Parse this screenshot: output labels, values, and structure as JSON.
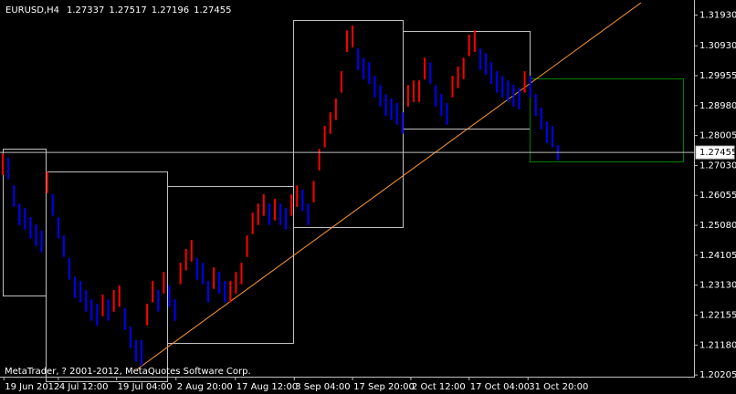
{
  "chart_data": {
    "type": "hl_bars",
    "title": "EURUSD,H4",
    "ohlc_info": [
      1.27337,
      1.27517,
      1.27196,
      1.27455
    ],
    "last_price": 1.27455,
    "copyright": "MetaTrader, ? 2001-2012, MetaQuotes Software Corp.",
    "up_color": "#ff0000",
    "down_color": "#0000ff",
    "high": [
      1.2742,
      1.2728,
      1.2638,
      1.2579,
      1.2564,
      1.2535,
      1.2511,
      1.249,
      1.2683,
      1.2609,
      1.2535,
      1.2475,
      1.2401,
      1.2341,
      1.2327,
      1.2297,
      1.2267,
      1.2252,
      1.2282,
      1.2267,
      1.2297,
      1.2312,
      1.2238,
      1.2178,
      1.2134,
      1.2134,
      1.2252,
      1.2327,
      1.2297,
      1.2356,
      1.2312,
      1.2267,
      1.2386,
      1.2431,
      1.246,
      1.2401,
      1.2386,
      1.2327,
      1.2371,
      1.2356,
      1.2327,
      1.2327,
      1.2356,
      1.2386,
      1.2475,
      1.2549,
      1.2579,
      1.2609,
      1.2579,
      1.2594,
      1.2579,
      1.2564,
      1.2609,
      1.2638,
      1.2624,
      1.2579,
      1.2653,
      1.2757,
      1.2832,
      1.2876,
      1.2921,
      1.301,
      1.3143,
      1.3158,
      1.3084,
      1.3054,
      1.3039,
      1.2995,
      1.2965,
      1.2935,
      1.2921,
      1.2906,
      1.2876,
      1.2965,
      1.298,
      1.298,
      1.3054,
      1.3039,
      1.2965,
      1.2935,
      1.2906,
      1.2995,
      1.3025,
      1.3054,
      1.3129,
      1.3143,
      1.3084,
      1.3069,
      1.3039,
      1.301,
      1.2995,
      1.298,
      1.2965,
      1.2956,
      1.301,
      1.2995,
      1.2935,
      1.2891,
      1.2846,
      1.2832,
      1.277
    ],
    "low": [
      1.2672,
      1.2658,
      1.2568,
      1.2509,
      1.2494,
      1.2465,
      1.2441,
      1.242,
      1.2613,
      1.2539,
      1.2465,
      1.2405,
      1.2331,
      1.2271,
      1.2257,
      1.2227,
      1.2197,
      1.2182,
      1.2212,
      1.2197,
      1.2227,
      1.2242,
      1.2168,
      1.2108,
      1.2064,
      1.205,
      1.2182,
      1.2257,
      1.2227,
      1.2286,
      1.2242,
      1.2197,
      1.2316,
      1.2361,
      1.239,
      1.2331,
      1.2316,
      1.2257,
      1.2301,
      1.2286,
      1.2257,
      1.2257,
      1.2286,
      1.2316,
      1.2405,
      1.2479,
      1.2509,
      1.2539,
      1.2509,
      1.2524,
      1.2509,
      1.2494,
      1.2539,
      1.2568,
      1.2554,
      1.2509,
      1.2583,
      1.2687,
      1.2762,
      1.2806,
      1.2851,
      1.294,
      1.3073,
      1.3088,
      1.3014,
      1.2984,
      1.2969,
      1.2925,
      1.2895,
      1.2865,
      1.2851,
      1.2836,
      1.2806,
      1.2895,
      1.291,
      1.291,
      1.2984,
      1.2969,
      1.2895,
      1.2865,
      1.2836,
      1.2925,
      1.2955,
      1.2984,
      1.3059,
      1.3073,
      1.3014,
      1.2999,
      1.2969,
      1.294,
      1.2925,
      1.291,
      1.2895,
      1.2886,
      1.294,
      1.2925,
      1.2865,
      1.2821,
      1.2776,
      1.2762,
      1.272
    ],
    "xlim": [
      -0.5,
      124.5
    ],
    "xticks": [
      {
        "value": 0.2,
        "label": "19 Jun 2012"
      },
      {
        "value": 10,
        "label": "4 Jul 12:00"
      },
      {
        "value": 20.5,
        "label": "19 Jul 04:00"
      },
      {
        "value": 31.2,
        "label": "2 Aug 20:00"
      },
      {
        "value": 41.9,
        "label": "17 Aug 12:00"
      },
      {
        "value": 52.5,
        "label": "3 Sep 04:00"
      },
      {
        "value": 63,
        "label": "17 Sep 20:00"
      },
      {
        "value": 73.5,
        "label": "2 Oct 12:00"
      },
      {
        "value": 84,
        "label": "17 Oct 04:00"
      },
      {
        "value": 94.6,
        "label": "31 Oct 20:00"
      }
    ],
    "ylim": [
      1.2015,
      1.3242
    ],
    "yticks": [
      1.20205,
      {
        "value": 1.2118,
        "label": "1.21180"
      },
      1.22155,
      {
        "value": 1.2313,
        "label": "1.23130"
      },
      1.24105,
      {
        "value": 1.2508,
        "label": "1.25080"
      },
      1.26055,
      {
        "value": 1.2703,
        "label": "1.27030"
      },
      1.28005,
      {
        "value": 1.2898,
        "label": "1.28980"
      },
      1.29955,
      {
        "value": 1.3093,
        "label": "1.30930"
      },
      {
        "value": 1.3193,
        "label": "1.31930"
      }
    ]
  }
}
